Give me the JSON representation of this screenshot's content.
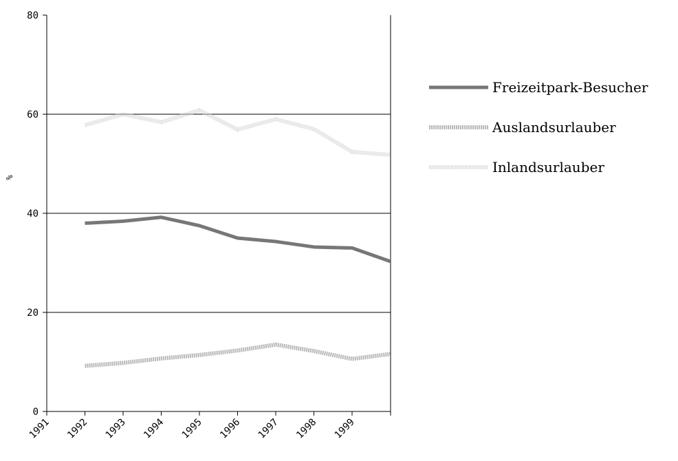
{
  "chart_data": {
    "type": "line",
    "title": "",
    "xlabel": "",
    "ylabel": "%",
    "ylim": [
      0,
      80
    ],
    "yticks": [
      "0",
      "20",
      "40",
      "60",
      "80"
    ],
    "categories": [
      "1991",
      "1992",
      "1993",
      "1994",
      "1995",
      "1996",
      "1997",
      "1998",
      "1999"
    ],
    "grid": "horizontal",
    "legend_position": "right",
    "series": [
      {
        "name": "Freizeitpark-Besucher",
        "color": "#777777",
        "style": "solid",
        "values": [
          38.0,
          38.4,
          39.2,
          37.5,
          35.0,
          34.3,
          33.2,
          33.0,
          30.3
        ]
      },
      {
        "name": "Auslandsurlauber",
        "color": "#b8b8b8",
        "style": "dashed",
        "values": [
          9.2,
          9.8,
          10.7,
          11.4,
          12.3,
          13.5,
          12.2,
          10.6,
          11.6
        ]
      },
      {
        "name": "Inlandsurlauber",
        "color": "#d6d6d6",
        "style": "dotted",
        "values": [
          57.8,
          60.0,
          58.4,
          60.8,
          56.9,
          59.0,
          57.0,
          52.4,
          51.8
        ]
      }
    ]
  }
}
